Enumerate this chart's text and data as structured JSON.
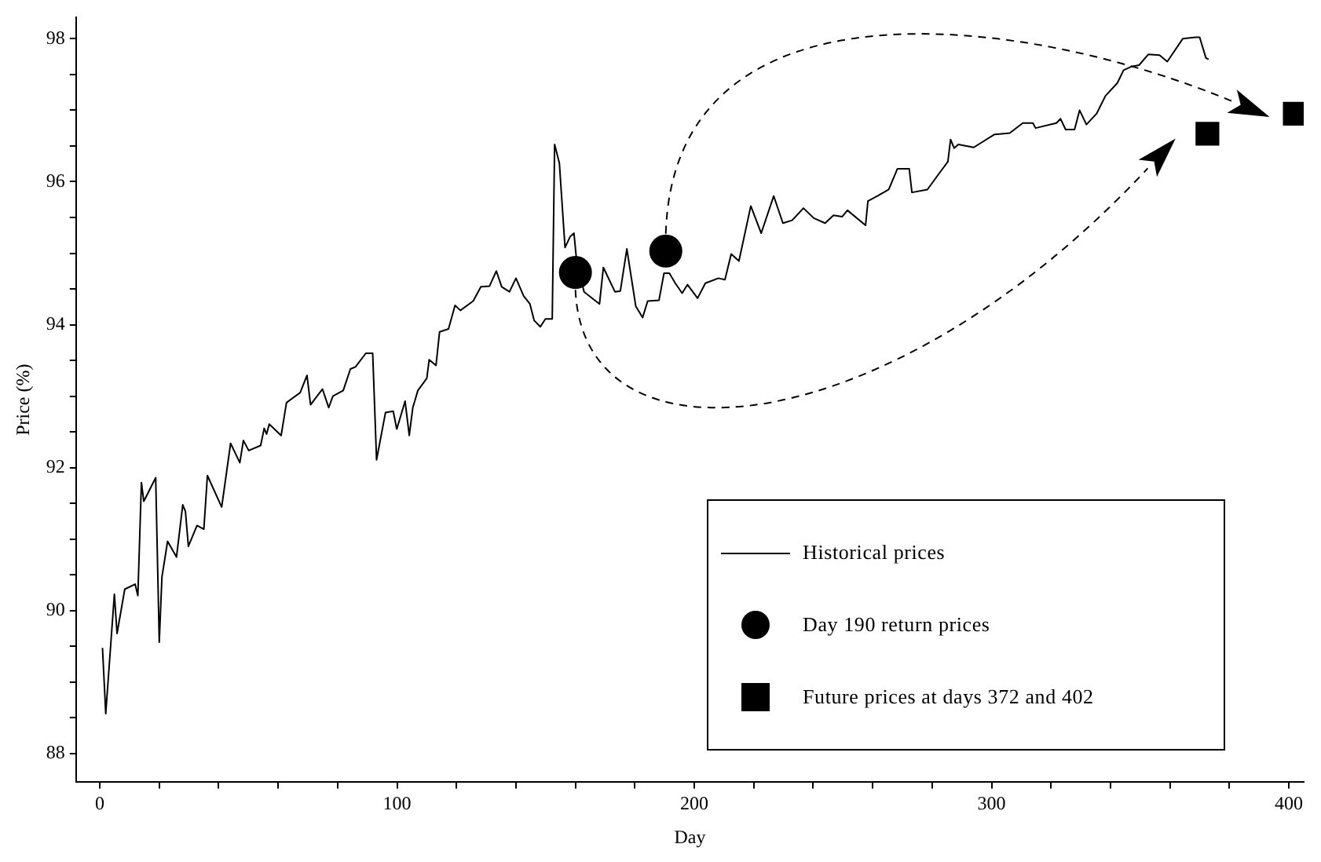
{
  "chart_data": {
    "type": "line",
    "xlabel": "Day",
    "ylabel": "Price (%)",
    "xlim": [
      -8,
      405
    ],
    "ylim": [
      87.6,
      98.3
    ],
    "xticks": [
      0,
      {
        "value": 20,
        "label": null
      },
      {
        "value": 40,
        "label": null
      },
      {
        "value": 60,
        "label": null
      },
      {
        "value": 80,
        "label": null
      },
      100,
      {
        "value": 120,
        "label": null
      },
      {
        "value": 140,
        "label": null
      },
      {
        "value": 160,
        "label": null
      },
      {
        "value": 180,
        "label": null
      },
      200,
      {
        "value": 220,
        "label": null
      },
      {
        "value": 240,
        "label": null
      },
      {
        "value": 260,
        "label": null
      },
      {
        "value": 280,
        "label": null
      },
      300,
      {
        "value": 320,
        "label": null
      },
      {
        "value": 340,
        "label": null
      },
      {
        "value": 360,
        "label": null
      },
      {
        "value": 380,
        "label": null
      },
      400
    ],
    "yticks": [
      88,
      {
        "value": 88.5,
        "label": null
      },
      {
        "value": 89,
        "label": null
      },
      {
        "value": 89.5,
        "label": null
      },
      90,
      {
        "value": 90.5,
        "label": null
      },
      {
        "value": 91,
        "label": null
      },
      {
        "value": 91.5,
        "label": null
      },
      92,
      {
        "value": 92.5,
        "label": null
      },
      {
        "value": 93,
        "label": null
      },
      {
        "value": 93.5,
        "label": null
      },
      94,
      {
        "value": 94.5,
        "label": null
      },
      {
        "value": 95,
        "label": null
      },
      {
        "value": 95.5,
        "label": null
      },
      96,
      {
        "value": 96.5,
        "label": null
      },
      {
        "value": 97,
        "label": null
      },
      {
        "value": 97.5,
        "label": null
      },
      98
    ],
    "grid": false,
    "legend": "bottom right",
    "series": [
      {
        "name": "Historical prices",
        "type": "line",
        "color": "#000000",
        "marker": "none",
        "line_style": "solid",
        "x": [
          0.9,
          2,
          4.9,
          5.8,
          8.4,
          11.9,
          12.8,
          14,
          14.8,
          18.8,
          20,
          20.9,
          22.8,
          25.8,
          27.9,
          28.8,
          29.8,
          32.7,
          35,
          36.2,
          41,
          44,
          47.1,
          48.3,
          50.1,
          54.1,
          55.3,
          56.1,
          57,
          61,
          62.8,
          67.4,
          69.7,
          70.9,
          74.9,
          77,
          78.4,
          81.9,
          84.3,
          86,
          89.5,
          91.8,
          93.1,
          96.1,
          98.7,
          99.9,
          102.7,
          104.1,
          105.3,
          107,
          110,
          110.8,
          113.1,
          114.3,
          117.3,
          119.5,
          121.3,
          125.6,
          128.2,
          131.1,
          133.4,
          135.2,
          137.8,
          140,
          142.6,
          144.7,
          146.1,
          148.2,
          149.9,
          152.2,
          153,
          154.6,
          156.5,
          158.2,
          159.5,
          160.3,
          162.9,
          168.1,
          169.4,
          173.3,
          175.1,
          177.3,
          180.3,
          182.6,
          184.3,
          188.1,
          189.8,
          191.6,
          193.6,
          195.9,
          197.7,
          201.1,
          203.7,
          208.1,
          210.3,
          212.4,
          215,
          219,
          222.5,
          226.7,
          229.8,
          232.9,
          236.7,
          240.2,
          244,
          246.8,
          249.7,
          251.5,
          257.6,
          258.4,
          261.6,
          265.4,
          268.3,
          272.3,
          273.2,
          278.4,
          281.9,
          285.3,
          286.2,
          287.4,
          288.8,
          294,
          300.9,
          306.1,
          310.5,
          313.9,
          314.8,
          321.8,
          323.2,
          324.9,
          327.9,
          329.6,
          331.9,
          335.3,
          338.3,
          342.3,
          344.4,
          347,
          349.6,
          352.7,
          356.5,
          359.1,
          364.3,
          368.6,
          370,
          372.1,
          373
        ],
        "values": [
          89.48,
          88.56,
          90.23,
          89.68,
          90.3,
          90.37,
          90.21,
          91.79,
          91.53,
          91.86,
          89.56,
          90.47,
          90.97,
          90.75,
          91.48,
          91.39,
          90.9,
          91.19,
          91.14,
          91.89,
          91.45,
          92.34,
          92.07,
          92.38,
          92.24,
          92.31,
          92.55,
          92.47,
          92.61,
          92.45,
          92.91,
          93.05,
          93.29,
          92.88,
          93.1,
          92.84,
          93,
          93.08,
          93.38,
          93.41,
          93.6,
          93.6,
          92.11,
          92.77,
          92.79,
          92.54,
          92.93,
          92.45,
          92.84,
          93.08,
          93.25,
          93.51,
          93.43,
          93.9,
          93.94,
          94.27,
          94.2,
          94.33,
          94.53,
          94.54,
          94.75,
          94.53,
          94.46,
          94.65,
          94.4,
          94.29,
          94.06,
          93.97,
          94.08,
          94.08,
          96.52,
          96.26,
          95.08,
          95.23,
          95.28,
          94.94,
          94.46,
          94.29,
          94.8,
          94.46,
          94.47,
          95.06,
          94.26,
          94.1,
          94.33,
          94.34,
          94.72,
          94.72,
          94.58,
          94.44,
          94.56,
          94.37,
          94.58,
          94.65,
          94.63,
          94.99,
          94.89,
          95.66,
          95.28,
          95.8,
          95.42,
          95.46,
          95.63,
          95.49,
          95.42,
          95.53,
          95.51,
          95.6,
          95.39,
          95.73,
          95.8,
          95.89,
          96.18,
          96.18,
          95.85,
          95.89,
          96.09,
          96.28,
          96.59,
          96.47,
          96.52,
          96.48,
          96.66,
          96.68,
          96.82,
          96.82,
          96.75,
          96.82,
          96.88,
          96.73,
          96.73,
          97,
          96.8,
          96.95,
          97.2,
          97.38,
          97.56,
          97.61,
          97.63,
          97.78,
          97.77,
          97.68,
          98,
          98.02,
          98.02,
          97.73,
          97.71
        ]
      },
      {
        "name": "Day 190 return prices",
        "type": "scatter",
        "color": "#000000",
        "marker": "circle",
        "x": [
          160,
          190.4
        ],
        "values": [
          94.73,
          95.03
        ]
      },
      {
        "name": "Future prices at days 372 and 402",
        "type": "scatter",
        "color": "#000000",
        "marker": "square",
        "x": [
          372.6,
          402
        ],
        "values": [
          96.67,
          96.95
        ]
      }
    ]
  }
}
